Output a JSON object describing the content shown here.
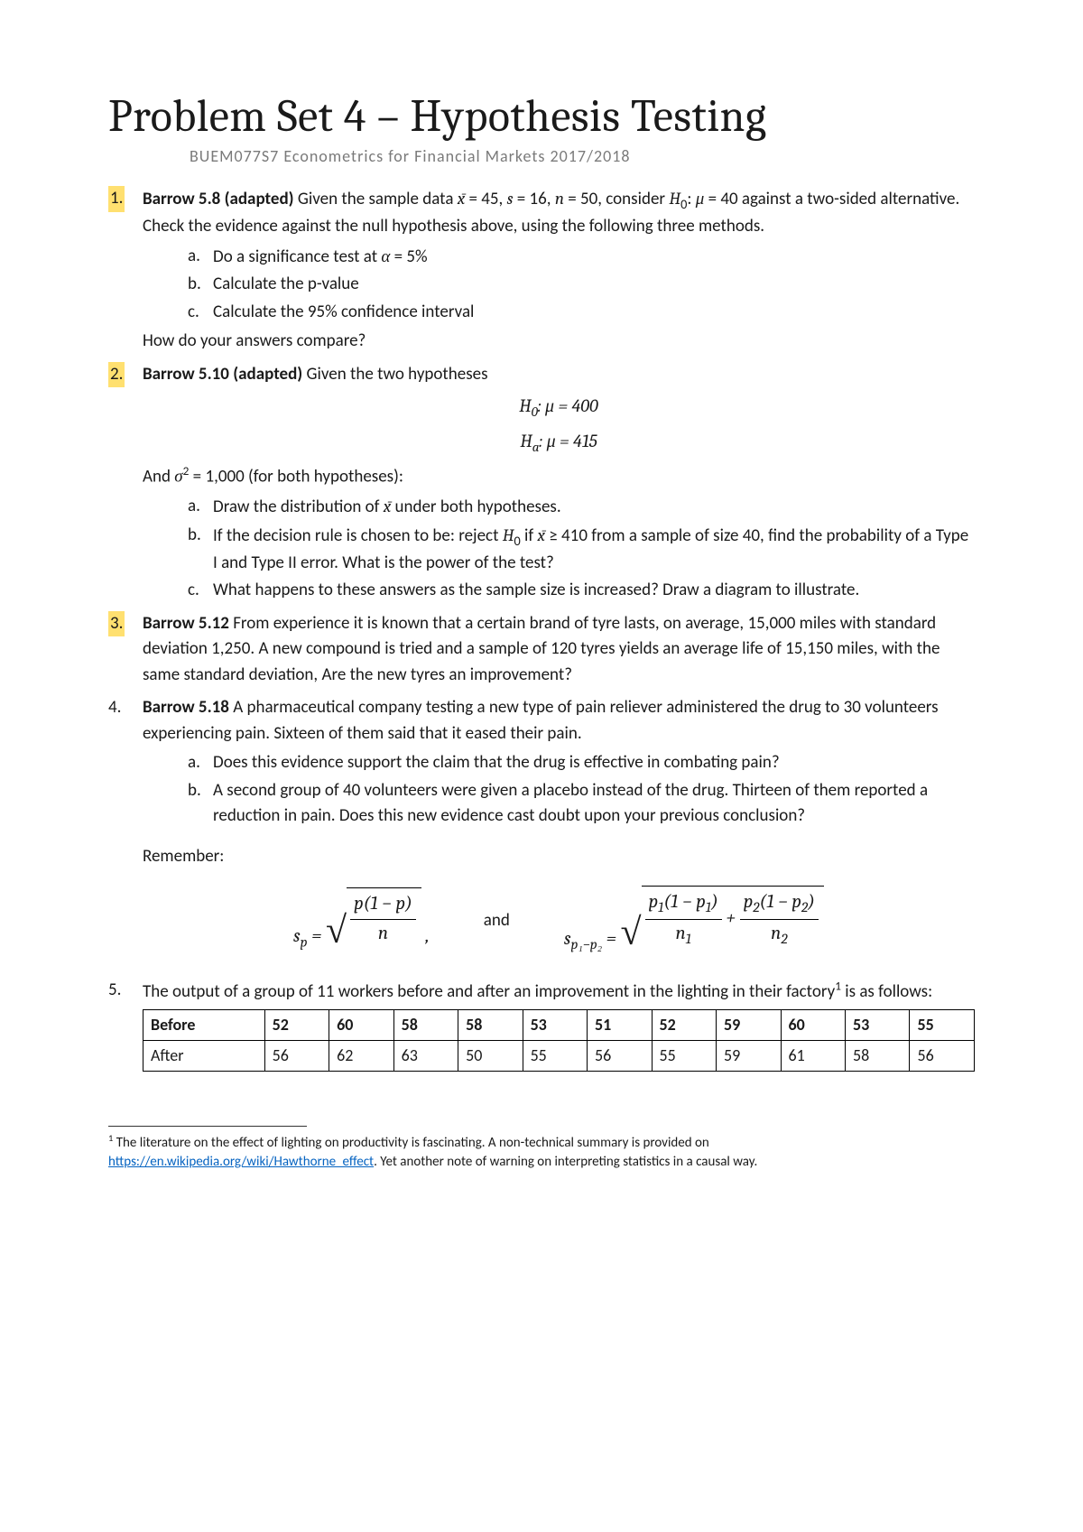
{
  "title": "Problem Set 4 – Hypothesis Testing",
  "subtitle": "BUEM077S7  Econometrics for Financial Markets 2017/2018",
  "problems": {
    "p1": {
      "highlighted": true,
      "lead": "Barrow 5.8 (adapted)",
      "text": " Given the sample data  x̄ = 45, s = 16, n = 50, consider H₀: μ = 40 against a two-sided alternative. Check the evidence against the null hypothesis above, using the following three methods.",
      "subs": [
        "Do a significance test at α = 5%",
        "Calculate the p-value",
        "Calculate the 95% confidence interval"
      ],
      "tail": "How do your answers compare?"
    },
    "p2": {
      "highlighted": true,
      "lead": "Barrow 5.10 (adapted)",
      "text": " Given the two hypotheses",
      "eq1": "H₀: μ = 400",
      "eq2": "Hₐ: μ = 415",
      "mid": "And σ² = 1,000 (for both hypotheses):",
      "subs": [
        "Draw the distribution of  x̄ under both hypotheses.",
        "If the decision rule is chosen to be: reject H₀ if  x̄ ≥ 410 from a sample of size 40, find the probability of a Type I and Type II error. What is the power of the test?",
        "What happens to these answers as the sample size is increased? Draw a diagram to illustrate."
      ]
    },
    "p3": {
      "highlighted": true,
      "lead": "Barrow 5.12",
      "text": "  From experience it is known that a certain brand of tyre lasts, on average, 15,000 miles with standard deviation 1,250. A new compound is tried and a sample of 120 tyres yields an average life of 15,150 miles, with the same standard deviation, Are the new tyres an improvement?"
    },
    "p4": {
      "highlighted": false,
      "lead": "Barrow 5.18",
      "text": "  A pharmaceutical company testing a new type of pain reliever administered the drug to 30 volunteers experiencing pain. Sixteen of them said that it eased their pain.",
      "subs": [
        "Does this evidence support the claim that the drug is effective in combating pain?",
        "A second group of 40 volunteers were given a placebo instead of the drug. Thirteen of them reported a reduction in pain. Does this new evidence cast doubt upon your previous conclusion?"
      ],
      "remember": "Remember:",
      "formula_and": "and"
    },
    "p5": {
      "highlighted": false,
      "text": "The output of a group of 11 workers before and after an improvement in the lighting in their factory¹ is as follows:"
    }
  },
  "table": {
    "row_labels": [
      "Before",
      "After"
    ],
    "rows": [
      [
        52,
        60,
        58,
        58,
        53,
        51,
        52,
        59,
        60,
        53,
        55
      ],
      [
        56,
        62,
        63,
        50,
        55,
        56,
        55,
        59,
        61,
        58,
        56
      ]
    ]
  },
  "footnote": {
    "marker": "1",
    "text_before": " The literature on the effect of lighting on productivity is fascinating. A non-technical summary is provided on ",
    "link_text": "https://en.wikipedia.org/wiki/Hawthorne_effect",
    "text_after": ". Yet another note of warning on interpreting statistics in a causal way."
  }
}
